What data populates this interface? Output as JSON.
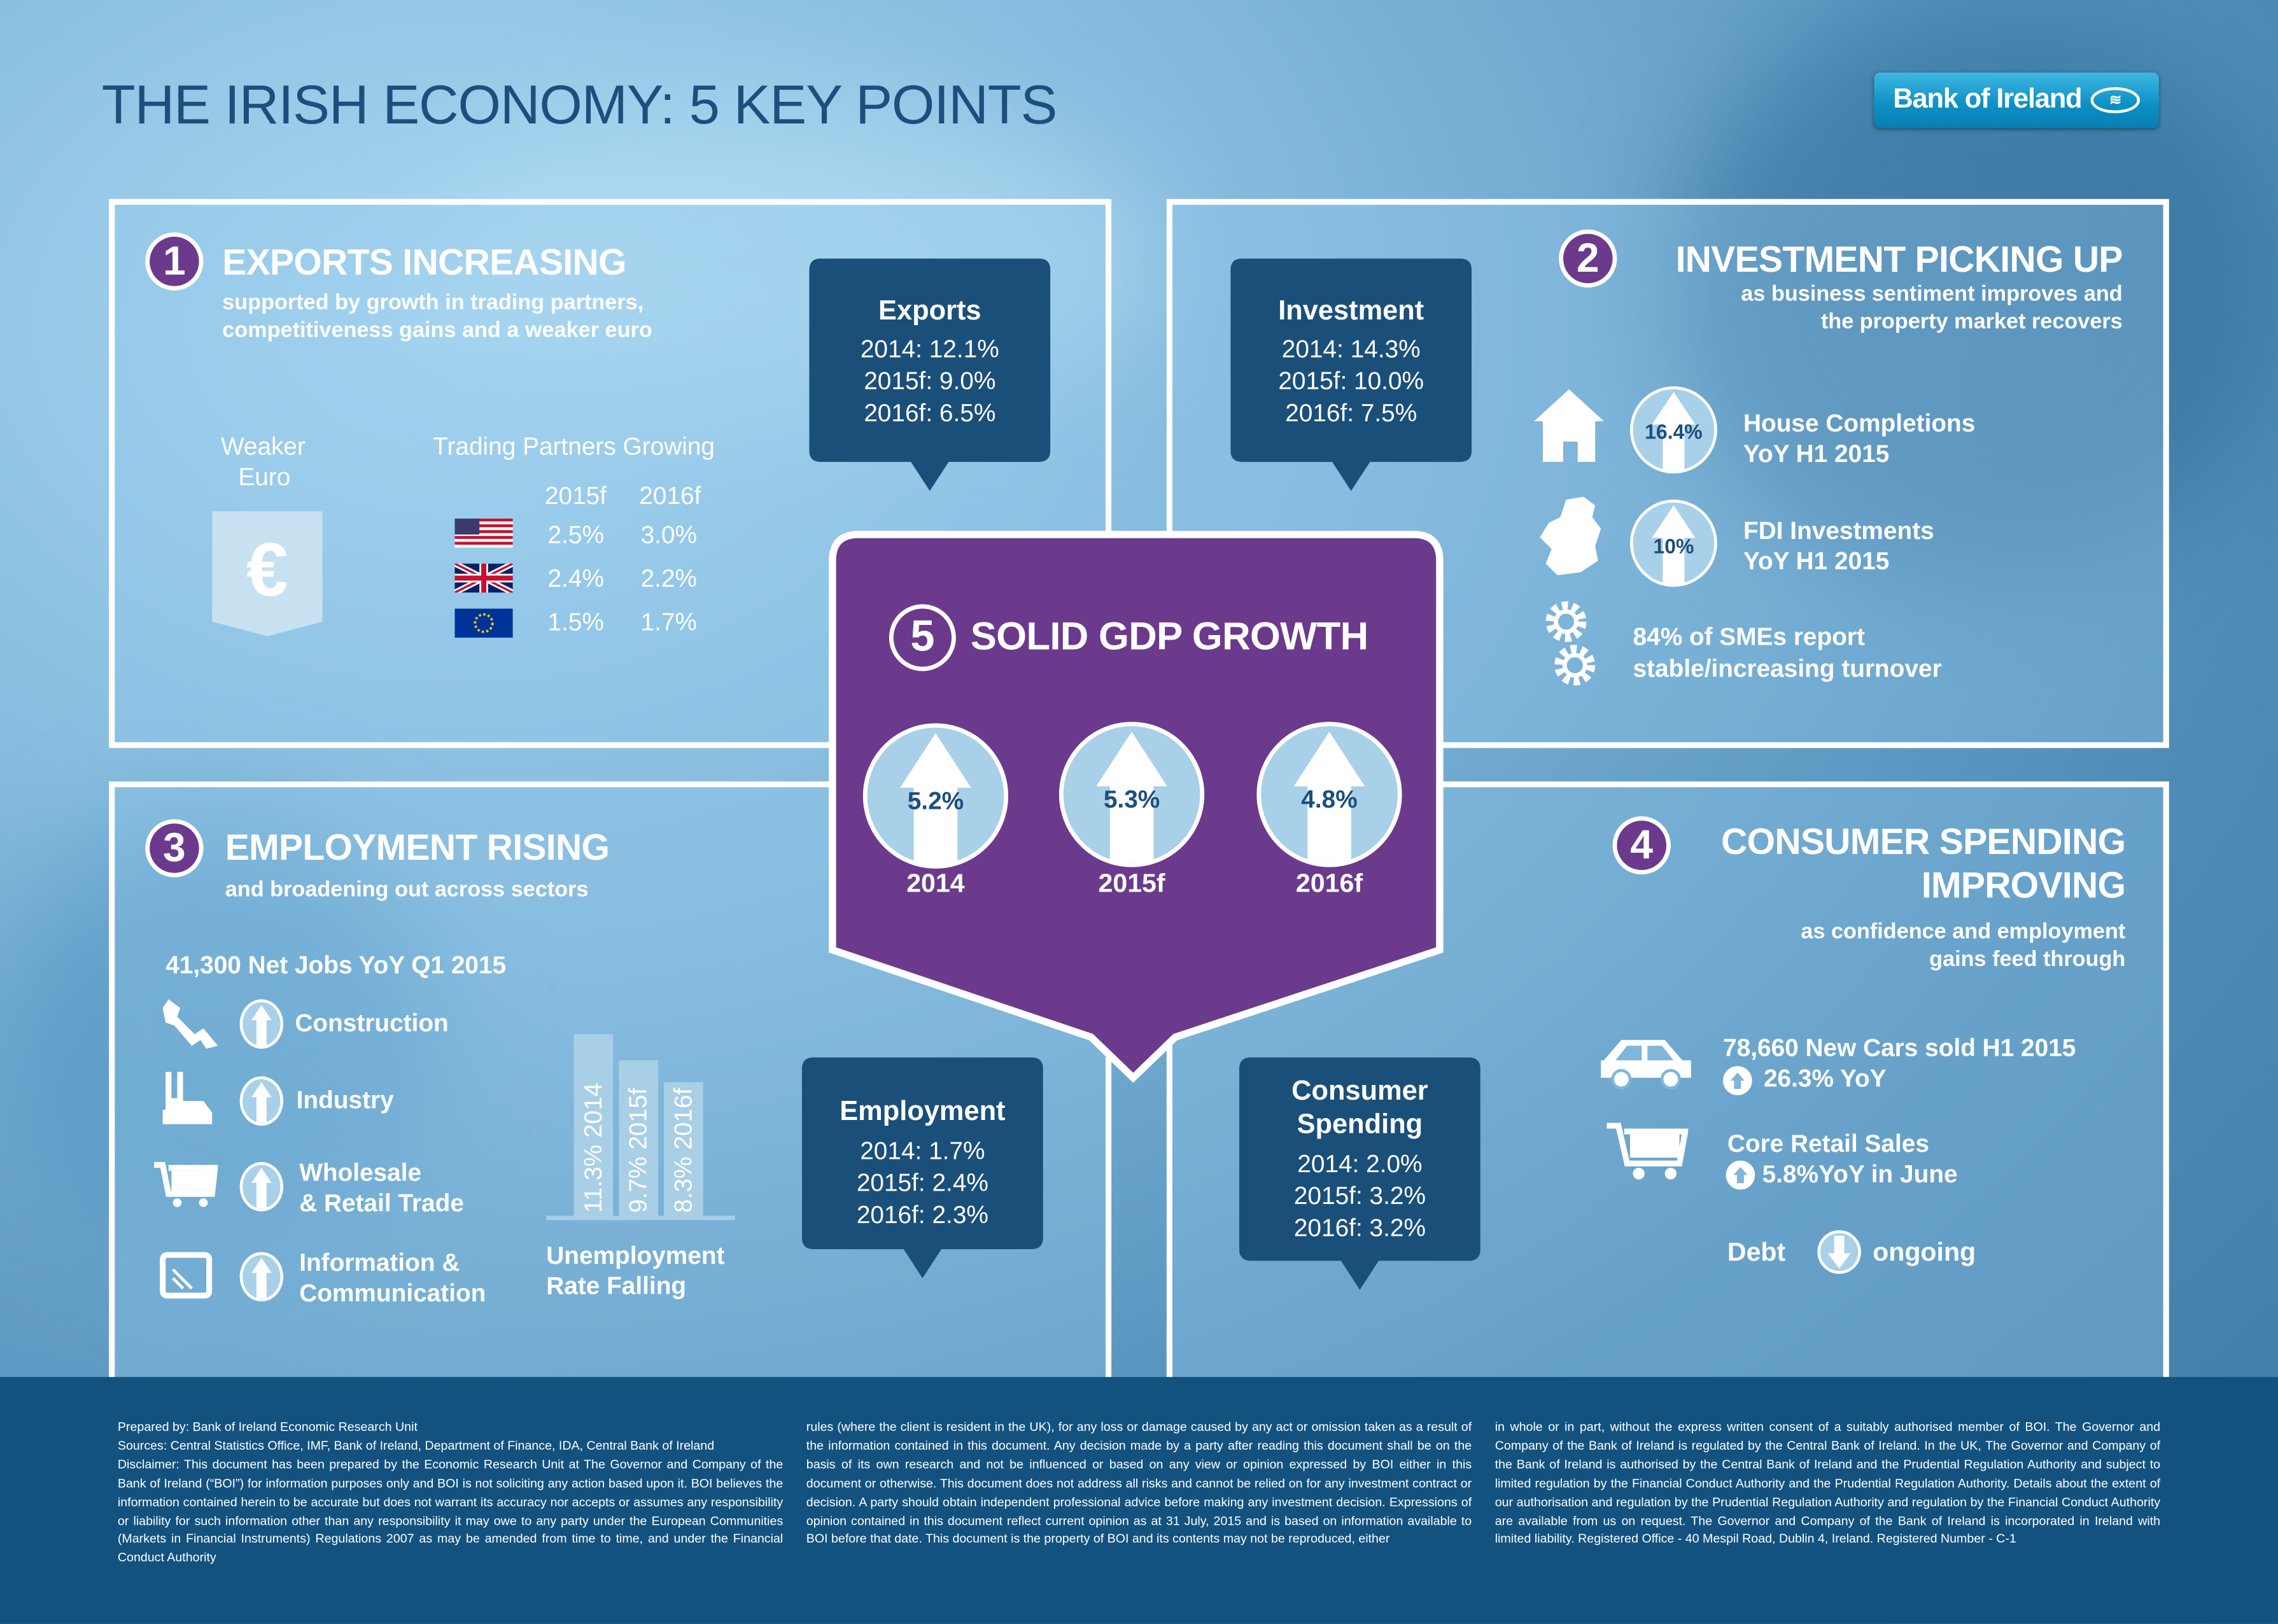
{
  "title": "THE IRISH ECONOMY: 5 KEY POINTS",
  "logo": {
    "text": "Bank of Ireland"
  },
  "colors": {
    "purple": "#6b3a8c",
    "dark_blue": "#1a4f7a",
    "footer": "#13527f",
    "title": "#1c4f7d"
  },
  "exports": {
    "number": "1",
    "heading": "EXPORTS INCREASING",
    "subtitle_1": "supported by growth in trading partners,",
    "subtitle_2": "competitiveness gains and a weaker euro",
    "weaker_euro_1": "Weaker",
    "weaker_euro_2": "Euro",
    "euro_symbol": "€",
    "trading_title": "Trading Partners Growing",
    "col_2015": "2015f",
    "col_2016": "2016f",
    "rows": [
      {
        "flag": "us-flag-icon",
        "v2015": "2.5%",
        "v2016": "3.0%"
      },
      {
        "flag": "uk-flag-icon",
        "v2015": "2.4%",
        "v2016": "2.2%"
      },
      {
        "flag": "eu-flag-icon",
        "v2015": "1.5%",
        "v2016": "1.7%"
      }
    ],
    "callout": {
      "title": "Exports",
      "l1": "2014: 12.1%",
      "l2": "2015f: 9.0%",
      "l3": "2016f: 6.5%"
    }
  },
  "investment": {
    "number": "2",
    "heading": "INVESTMENT PICKING UP",
    "subtitle_1": "as business sentiment improves and",
    "subtitle_2": "the property market recovers",
    "house_value": "16.4%",
    "house_1": "House Completions",
    "house_2": "YoY H1 2015",
    "fdi_value": "10%",
    "fdi_1": "FDI Investments",
    "fdi_2": "YoY H1 2015",
    "sme_1": "84% of SMEs report",
    "sme_2": "stable/increasing turnover",
    "callout": {
      "title": "Investment",
      "l1": "2014: 14.3%",
      "l2": "2015f: 10.0%",
      "l3": "2016f: 7.5%"
    }
  },
  "employment": {
    "number": "3",
    "heading": "EMPLOYMENT RISING",
    "subtitle": "and broadening out across sectors",
    "net_jobs": "41,300 Net Jobs YoY Q1 2015",
    "sectors": [
      "Construction",
      "Industry",
      "Wholesale",
      "& Retail Trade",
      "Information &",
      "Communication"
    ],
    "unemployment_bars": [
      {
        "label": "11.3% 2014",
        "value": 11.3
      },
      {
        "label": "9.7% 2015f",
        "value": 9.7
      },
      {
        "label": "8.3% 2016f",
        "value": 8.3
      }
    ],
    "unemp_1": "Unemployment",
    "unemp_2": "Rate Falling",
    "callout": {
      "title": "Employment",
      "l1": "2014: 1.7%",
      "l2": "2015f: 2.4%",
      "l3": "2016f: 2.3%"
    }
  },
  "consumer": {
    "number": "4",
    "heading_1": "CONSUMER SPENDING",
    "heading_2": "IMPROVING",
    "subtitle_1": "as confidence and employment",
    "subtitle_2": "gains feed through",
    "cars_1": "78,660 New Cars sold H1 2015",
    "cars_2": "26.3% YoY",
    "retail_1": "Core Retail Sales",
    "retail_2": "5.8%YoY in June",
    "debt": "Debt",
    "ongoing": "ongoing",
    "callout": {
      "title_1": "Consumer",
      "title_2": "Spending",
      "l1": "2014: 2.0%",
      "l2": "2015f: 3.2%",
      "l3": "2016f: 3.2%"
    }
  },
  "gdp": {
    "number": "5",
    "heading": "SOLID GDP GROWTH",
    "items": [
      {
        "value": "5.2%",
        "year": "2014"
      },
      {
        "value": "5.3%",
        "year": "2015f"
      },
      {
        "value": "4.8%",
        "year": "2016f"
      }
    ]
  },
  "footer": {
    "col1": "Prepared by: Bank of Ireland Economic Research Unit\nSources: Central Statistics Office, IMF, Bank of Ireland, Department of Finance, IDA, Central Bank of Ireland\nDisclaimer: This document has been prepared by the Economic Research Unit at The Governor and Company of the Bank of Ireland (“BOI”) for information purposes only and BOI is not soliciting any action based upon it. BOI believes the information contained herein to be accurate but does not warrant its accuracy nor accepts or assumes any responsibility or liability for such information other than any responsibility it may owe to any party under the European Communities (Markets in Financial Instruments) Regulations 2007 as may be amended from time to time, and under the Financial Conduct Authority",
    "col2": "rules (where the client is resident in the UK), for any loss or damage caused by any act or omission taken as a result of the information contained in this document. Any decision made by a party after reading this document shall be on the basis of its own research and not be influenced or based on any view or opinion expressed by BOI either in this document or otherwise. This document does not address all risks and cannot be relied on for any investment contract or decision. A party should obtain independent professional advice before making any investment decision. Expressions of opinion contained in this document reflect current opinion as at 31 July, 2015 and is based on information available to BOI before that date. This document is the property of BOI and its contents may not be reproduced, either",
    "col3": "in whole or in part, without the express written consent of a suitably authorised member of BOI. The Governor and Company of the Bank of Ireland is regulated by the Central Bank of Ireland. In the UK, The Governor and Company of the Bank of Ireland is authorised by the Central Bank of Ireland and the Prudential Regulation Authority and subject to limited regulation by the Financial Conduct Authority and the Prudential Regulation Authority. Details about the extent of our authorisation and regulation by the Prudential Regulation Authority and regulation by the Financial Conduct Authority are available from us on request. The Governor and Company of the Bank of Ireland is incorporated in Ireland with limited liability. Registered Office - 40 Mespil Road, Dublin 4, Ireland. Registered Number - C-1"
  }
}
